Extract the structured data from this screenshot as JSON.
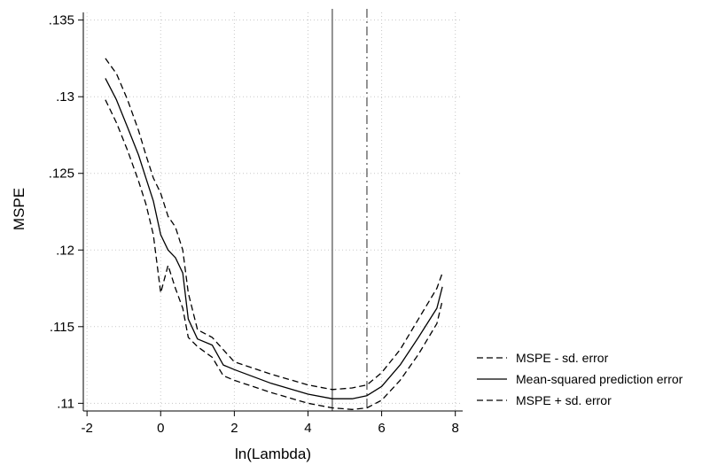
{
  "chart_data": {
    "type": "line",
    "title": "",
    "xlabel": "ln(Lambda)",
    "ylabel": "MSPE",
    "xlim": [
      -2.1,
      8.2
    ],
    "ylim": [
      0.1095,
      0.1355
    ],
    "x_ticks": [
      -2,
      0,
      2,
      4,
      6,
      8
    ],
    "x_tick_labels": [
      "-2",
      "0",
      "2",
      "4",
      "6",
      "8"
    ],
    "y_ticks": [
      0.11,
      0.115,
      0.12,
      0.125,
      0.13,
      0.135
    ],
    "y_tick_labels": [
      ".11",
      ".115",
      ".12",
      ".125",
      ".13",
      ".135"
    ],
    "grid": true,
    "legend_position": "right",
    "vlines": [
      {
        "x": 4.66,
        "style": "solid",
        "color": "#666666"
      },
      {
        "x": 5.6,
        "style": "dashdot",
        "color": "#666666"
      }
    ],
    "series": [
      {
        "name": "MSPE - sd. error",
        "style": "dashed",
        "x": [
          -1.5,
          -1.2,
          -0.9,
          -0.6,
          -0.4,
          -0.2,
          0.0,
          0.2,
          0.4,
          0.6,
          0.75,
          1.0,
          1.4,
          1.7,
          2.0,
          3.0,
          4.0,
          4.66,
          5.2,
          5.6,
          6.0,
          6.5,
          7.0,
          7.5,
          7.65
        ],
        "y": [
          0.1298,
          0.1283,
          0.1265,
          0.1245,
          0.123,
          0.121,
          0.1172,
          0.119,
          0.1175,
          0.1162,
          0.1143,
          0.1137,
          0.113,
          0.1118,
          0.1115,
          0.1107,
          0.11,
          0.1097,
          0.1096,
          0.1097,
          0.1102,
          0.1115,
          0.1132,
          0.1152,
          0.1167
        ]
      },
      {
        "name": "Mean-squared prediction error",
        "style": "solid",
        "x": [
          -1.5,
          -1.2,
          -0.9,
          -0.6,
          -0.4,
          -0.2,
          0.0,
          0.2,
          0.4,
          0.6,
          0.75,
          1.0,
          1.4,
          1.7,
          2.0,
          3.0,
          4.0,
          4.66,
          5.2,
          5.6,
          6.0,
          6.5,
          7.0,
          7.5,
          7.65
        ],
        "y": [
          0.1312,
          0.1298,
          0.128,
          0.1262,
          0.1247,
          0.1232,
          0.121,
          0.12,
          0.1195,
          0.1185,
          0.1155,
          0.1142,
          0.1138,
          0.1125,
          0.1122,
          0.1113,
          0.1106,
          0.1103,
          0.1103,
          0.1105,
          0.1111,
          0.1125,
          0.1143,
          0.1162,
          0.1176
        ]
      },
      {
        "name": "MSPE + sd. error",
        "style": "dashed",
        "x": [
          -1.5,
          -1.2,
          -0.9,
          -0.6,
          -0.4,
          -0.2,
          0.0,
          0.2,
          0.4,
          0.6,
          0.75,
          1.0,
          1.4,
          1.7,
          2.0,
          3.0,
          4.0,
          4.66,
          5.2,
          5.6,
          6.0,
          6.5,
          7.0,
          7.5,
          7.65
        ],
        "y": [
          0.1325,
          0.1315,
          0.1298,
          0.1278,
          0.1262,
          0.1247,
          0.1237,
          0.1222,
          0.1215,
          0.12,
          0.1172,
          0.1148,
          0.1143,
          0.1135,
          0.1127,
          0.1119,
          0.1112,
          0.1109,
          0.111,
          0.1112,
          0.112,
          0.1135,
          0.1155,
          0.1175,
          0.1185
        ]
      }
    ]
  }
}
